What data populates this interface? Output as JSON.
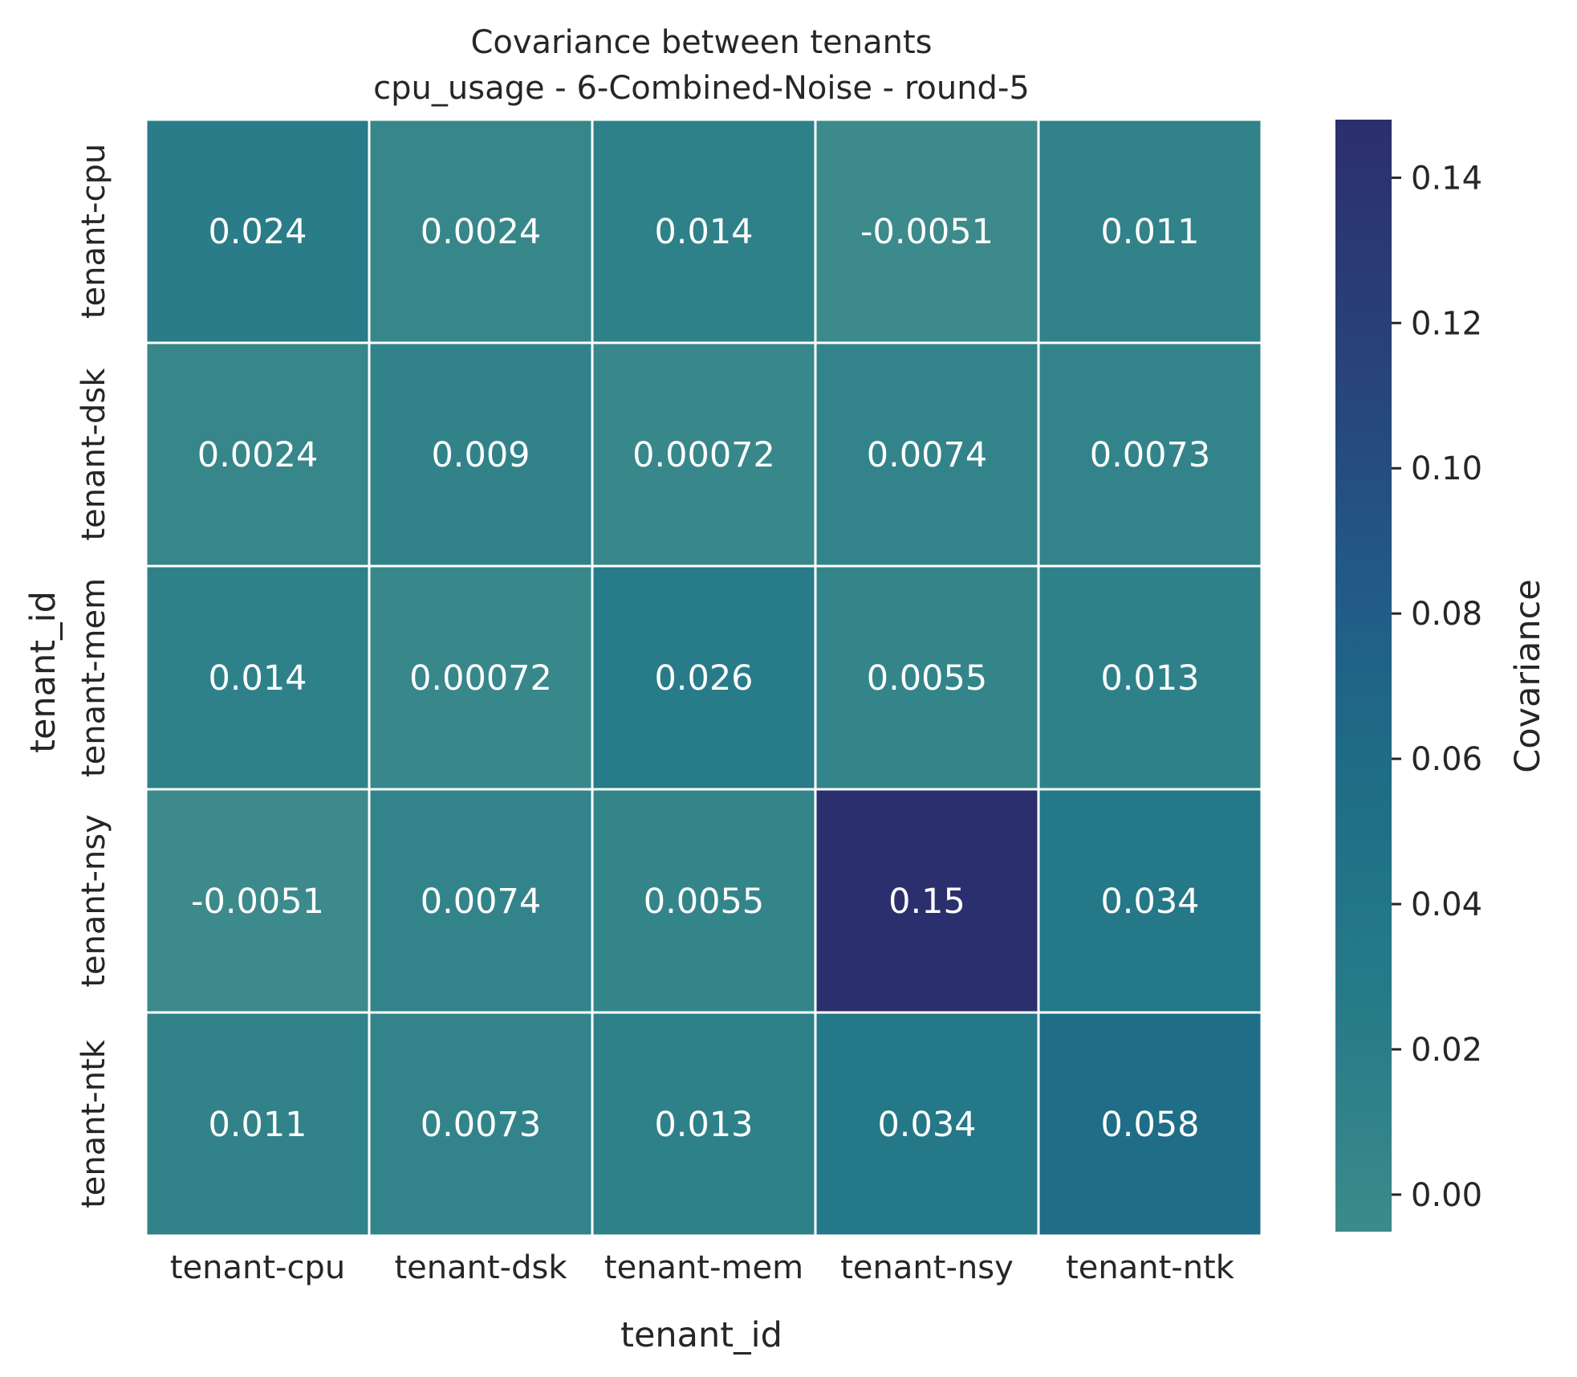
{
  "chart_data": {
    "type": "heatmap",
    "title": "Covariance between tenants",
    "subtitle": "cpu_usage - 6-Combined-Noise - round-5",
    "xlabel": "tenant_id",
    "ylabel": "tenant_id",
    "x_categories": [
      "tenant-cpu",
      "tenant-dsk",
      "tenant-mem",
      "tenant-nsy",
      "tenant-ntk"
    ],
    "y_categories": [
      "tenant-cpu",
      "tenant-dsk",
      "tenant-mem",
      "tenant-nsy",
      "tenant-ntk"
    ],
    "values": [
      [
        0.024,
        0.0024,
        0.014,
        -0.0051,
        0.011
      ],
      [
        0.0024,
        0.009,
        0.00072,
        0.0074,
        0.0073
      ],
      [
        0.014,
        0.00072,
        0.026,
        0.0055,
        0.013
      ],
      [
        -0.0051,
        0.0074,
        0.0055,
        0.15,
        0.034
      ],
      [
        0.011,
        0.0073,
        0.013,
        0.034,
        0.058
      ]
    ],
    "cell_labels": [
      [
        "0.024",
        "0.0024",
        "0.014",
        "-0.0051",
        "0.011"
      ],
      [
        "0.0024",
        "0.009",
        "0.00072",
        "0.0074",
        "0.0073"
      ],
      [
        "0.014",
        "0.00072",
        "0.026",
        "0.0055",
        "0.013"
      ],
      [
        "-0.0051",
        "0.0074",
        "0.0055",
        "0.15",
        "0.034"
      ],
      [
        "0.011",
        "0.0073",
        "0.013",
        "0.034",
        "0.058"
      ]
    ],
    "colorbar": {
      "label": "Covariance",
      "range": [
        -0.0051,
        0.148
      ],
      "ticks": [
        0.0,
        0.02,
        0.04,
        0.06,
        0.08,
        0.1,
        0.12,
        0.14
      ],
      "tick_labels": [
        "0.00",
        "0.02",
        "0.04",
        "0.06",
        "0.08",
        "0.10",
        "0.12",
        "0.14"
      ],
      "colormap_stops": [
        {
          "v": 0.0,
          "color": "#3c8a8b"
        },
        {
          "v": 0.12,
          "color": "#2f8189"
        },
        {
          "v": 0.22,
          "color": "#267a88"
        },
        {
          "v": 0.33,
          "color": "#217386"
        },
        {
          "v": 0.42,
          "color": "#1f6c86"
        },
        {
          "v": 0.55,
          "color": "#215e87"
        },
        {
          "v": 0.68,
          "color": "#254e80"
        },
        {
          "v": 0.82,
          "color": "#293f77"
        },
        {
          "v": 1.0,
          "color": "#2c2f6d"
        }
      ]
    },
    "grid": false,
    "cell_text_color": "#ffffff",
    "cell_border_color": "#ffffff"
  }
}
